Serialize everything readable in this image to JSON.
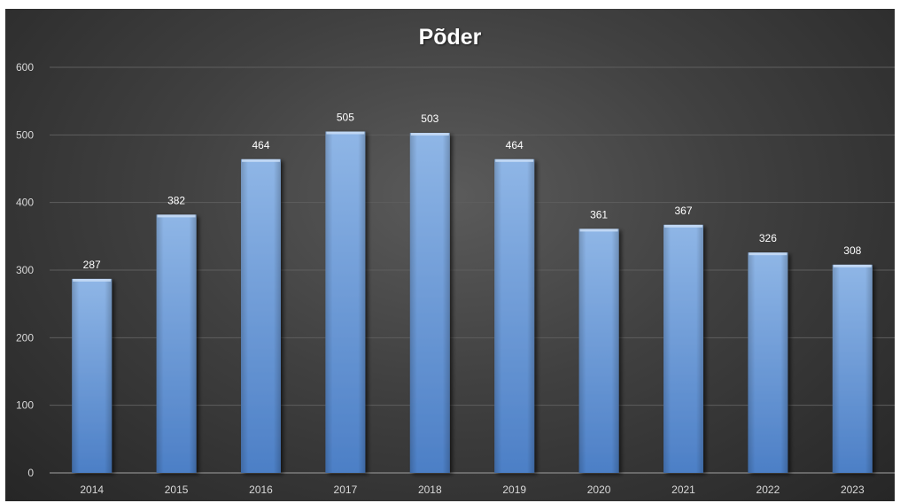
{
  "chart_data": {
    "type": "bar",
    "title": "Põder",
    "xlabel": "",
    "ylabel": "",
    "categories": [
      "2014",
      "2015",
      "2016",
      "2017",
      "2018",
      "2019",
      "2020",
      "2021",
      "2022",
      "2023"
    ],
    "values": [
      287,
      382,
      464,
      505,
      503,
      464,
      361,
      367,
      326,
      308
    ],
    "data_labels": [
      "287",
      "382",
      "464",
      "505",
      "503",
      "464",
      "361",
      "367",
      "326",
      "308"
    ],
    "y_ticks": [
      "0",
      "100",
      "200",
      "300",
      "400",
      "500",
      "600"
    ],
    "ylim": [
      0,
      600
    ],
    "grid": true,
    "legend": "none",
    "colors": {
      "bar_light": "#8fb6e6",
      "bar_dark": "#4c7fc6",
      "label_text": "#ffffff",
      "tick_text": "#d9d9d9",
      "grid": "#5e5e5e"
    }
  }
}
